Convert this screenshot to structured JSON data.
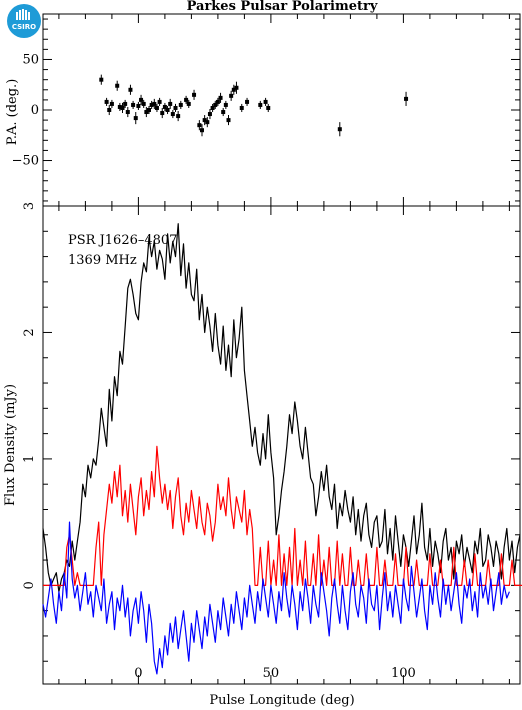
{
  "logo": {
    "text": "CSIRO",
    "color": "#1e9bd7"
  },
  "chart_data": [
    {
      "type": "scatter",
      "title": "Parkes Pulsar Polarimetry",
      "ylabel": "P.A. (deg.)",
      "xlim": [
        -36,
        144
      ],
      "ylim": [
        -95,
        95
      ],
      "yticks": [
        -50,
        0,
        50
      ],
      "points": [
        {
          "x": -14,
          "y": 30,
          "err": 5
        },
        {
          "x": -12,
          "y": 8,
          "err": 4
        },
        {
          "x": -11,
          "y": 0,
          "err": 5
        },
        {
          "x": -10,
          "y": 6,
          "err": 4
        },
        {
          "x": -8,
          "y": 24,
          "err": 5
        },
        {
          "x": -7,
          "y": 3,
          "err": 4
        },
        {
          "x": -6,
          "y": 2,
          "err": 5
        },
        {
          "x": -5,
          "y": 6,
          "err": 4
        },
        {
          "x": -4,
          "y": -2,
          "err": 5
        },
        {
          "x": -3,
          "y": 20,
          "err": 5
        },
        {
          "x": -2,
          "y": 5,
          "err": 4
        },
        {
          "x": -1,
          "y": -8,
          "err": 6
        },
        {
          "x": 0,
          "y": 4,
          "err": 4
        },
        {
          "x": 1,
          "y": 10,
          "err": 5
        },
        {
          "x": 2,
          "y": 6,
          "err": 4
        },
        {
          "x": 3,
          "y": -2,
          "err": 5
        },
        {
          "x": 4,
          "y": 0,
          "err": 4
        },
        {
          "x": 5,
          "y": 5,
          "err": 4
        },
        {
          "x": 6,
          "y": 6,
          "err": 5
        },
        {
          "x": 7,
          "y": 2,
          "err": 4
        },
        {
          "x": 8,
          "y": 8,
          "err": 4
        },
        {
          "x": 9,
          "y": -3,
          "err": 5
        },
        {
          "x": 10,
          "y": 3,
          "err": 4
        },
        {
          "x": 11,
          "y": 0,
          "err": 4
        },
        {
          "x": 12,
          "y": 6,
          "err": 5
        },
        {
          "x": 13,
          "y": -4,
          "err": 4
        },
        {
          "x": 14,
          "y": 2,
          "err": 4
        },
        {
          "x": 15,
          "y": -6,
          "err": 5
        },
        {
          "x": 16,
          "y": 5,
          "err": 4
        },
        {
          "x": 18,
          "y": 10,
          "err": 4
        },
        {
          "x": 19,
          "y": 6,
          "err": 4
        },
        {
          "x": 21,
          "y": 15,
          "err": 5
        },
        {
          "x": 23,
          "y": -15,
          "err": 5
        },
        {
          "x": 24,
          "y": -20,
          "err": 6
        },
        {
          "x": 25,
          "y": -10,
          "err": 5
        },
        {
          "x": 26,
          "y": -12,
          "err": 5
        },
        {
          "x": 27,
          "y": -4,
          "err": 5
        },
        {
          "x": 28,
          "y": 2,
          "err": 4
        },
        {
          "x": 29,
          "y": 5,
          "err": 4
        },
        {
          "x": 30,
          "y": 8,
          "err": 4
        },
        {
          "x": 31,
          "y": 12,
          "err": 5
        },
        {
          "x": 32,
          "y": -2,
          "err": 4
        },
        {
          "x": 33,
          "y": 5,
          "err": 4
        },
        {
          "x": 34,
          "y": -10,
          "err": 5
        },
        {
          "x": 35,
          "y": 14,
          "err": 5
        },
        {
          "x": 36,
          "y": 20,
          "err": 5
        },
        {
          "x": 37,
          "y": 22,
          "err": 6
        },
        {
          "x": 39,
          "y": 2,
          "err": 4
        },
        {
          "x": 41,
          "y": 8,
          "err": 4
        },
        {
          "x": 46,
          "y": 5,
          "err": 4
        },
        {
          "x": 48,
          "y": 8,
          "err": 4
        },
        {
          "x": 49,
          "y": 2,
          "err": 4
        },
        {
          "x": 76,
          "y": -19,
          "err": 7
        },
        {
          "x": 101,
          "y": 11,
          "err": 7
        }
      ]
    },
    {
      "type": "line",
      "ylabel": "Flux Density (mJy)",
      "xlabel": "Pulse Longitude (deg)",
      "xlim": [
        -36,
        144
      ],
      "ylim": [
        -0.78,
        3.0
      ],
      "xticks": [
        0,
        50,
        100
      ],
      "yticks": [
        0,
        1,
        2,
        3
      ],
      "annotations": [
        "PSR J1626–4807",
        "1369 MHz"
      ],
      "x_step": 1.0,
      "series": [
        {
          "color": "#000000",
          "values": [
            0.45,
            0.3,
            0.1,
            0.0,
            0.05,
            0.1,
            -0.05,
            0.05,
            0.1,
            0.2,
            0.15,
            0.35,
            0.2,
            0.35,
            0.5,
            0.8,
            0.7,
            0.95,
            0.85,
            1.0,
            0.95,
            1.15,
            1.4,
            1.25,
            1.1,
            1.55,
            1.3,
            1.65,
            1.5,
            1.85,
            1.75,
            2.05,
            2.35,
            2.42,
            2.3,
            2.15,
            2.1,
            2.4,
            2.55,
            2.48,
            2.75,
            2.6,
            2.72,
            2.5,
            2.65,
            2.58,
            2.42,
            2.78,
            2.55,
            2.72,
            2.6,
            2.86,
            2.45,
            2.7,
            2.35,
            2.55,
            2.3,
            2.25,
            2.5,
            2.1,
            2.3,
            2.0,
            2.2,
            2.05,
            1.85,
            2.15,
            1.9,
            1.75,
            2.05,
            1.7,
            1.9,
            1.65,
            2.1,
            1.8,
            1.95,
            2.2,
            1.7,
            1.5,
            1.3,
            1.1,
            1.25,
            1.05,
            0.95,
            1.2,
            1.0,
            1.35,
            1.05,
            0.85,
            0.4,
            0.55,
            0.75,
            0.9,
            1.1,
            1.35,
            1.2,
            1.45,
            1.3,
            1.1,
            1.0,
            1.25,
            1.05,
            0.85,
            0.8,
            0.55,
            0.7,
            0.9,
            0.75,
            0.95,
            0.7,
            0.6,
            0.8,
            0.45,
            0.65,
            0.55,
            0.75,
            0.6,
            0.5,
            0.7,
            0.4,
            0.6,
            0.35,
            0.55,
            0.65,
            0.4,
            0.3,
            0.5,
            0.55,
            0.3,
            0.35,
            0.6,
            0.25,
            0.45,
            0.2,
            0.55,
            0.35,
            0.15,
            0.4,
            0.3,
            0.15,
            0.35,
            0.55,
            0.25,
            0.4,
            0.65,
            0.3,
            0.2,
            0.45,
            0.15,
            0.35,
            0.25,
            0.1,
            0.35,
            0.45,
            0.2,
            0.3,
            0.05,
            0.35,
            0.25,
            0.4,
            0.15,
            0.3,
            0.2,
            0.1,
            0.35,
            0.25,
            0.45,
            0.15,
            0.2,
            0.4,
            0.3,
            0.15,
            0.35,
            0.25,
            0.05,
            0.3,
            0.45,
            0.2,
            0.35,
            0.1,
            0.3,
            0.4
          ]
        },
        {
          "color": "#ff0000",
          "values": [
            0.0,
            0.0,
            0.0,
            0.0,
            0.0,
            0.0,
            0.0,
            0.0,
            0.0,
            0.3,
            0.4,
            0.2,
            0.0,
            0.1,
            0.0,
            0.0,
            0.0,
            0.0,
            0.0,
            0.0,
            0.3,
            0.5,
            0.0,
            0.4,
            0.6,
            0.8,
            0.65,
            0.9,
            0.7,
            0.95,
            0.55,
            0.75,
            0.5,
            0.8,
            0.6,
            0.4,
            0.7,
            0.85,
            0.55,
            0.75,
            0.6,
            0.9,
            0.7,
            1.1,
            0.85,
            0.65,
            0.8,
            0.6,
            0.75,
            0.45,
            0.7,
            0.85,
            0.55,
            0.4,
            0.65,
            0.5,
            0.75,
            0.6,
            0.45,
            0.7,
            0.5,
            0.4,
            0.65,
            0.55,
            0.35,
            0.5,
            0.8,
            0.6,
            0.7,
            0.55,
            0.85,
            0.6,
            0.45,
            0.7,
            0.6,
            0.5,
            0.75,
            0.4,
            0.6,
            0.45,
            0.0,
            0.0,
            0.3,
            0.0,
            0.0,
            0.35,
            0.0,
            0.2,
            0.0,
            0.4,
            0.0,
            0.25,
            0.0,
            0.3,
            0.0,
            0.45,
            0.0,
            0.2,
            0.0,
            0.35,
            0.0,
            0.0,
            0.25,
            0.0,
            0.4,
            0.0,
            0.2,
            0.0,
            0.3,
            0.0,
            0.0,
            0.35,
            0.0,
            0.25,
            0.0,
            0.0,
            0.3,
            0.0,
            0.0,
            0.2,
            0.0,
            0.0,
            0.25,
            0.0,
            0.0,
            0.0,
            0.3,
            0.0,
            0.0,
            0.2,
            0.0,
            0.0,
            0.0,
            0.25,
            0.0,
            0.0,
            0.0,
            0.3,
            0.0,
            0.0,
            0.0,
            0.2,
            0.0,
            0.0,
            0.0,
            0.0,
            0.25,
            0.0,
            0.0,
            0.0,
            0.2,
            0.0,
            0.0,
            0.0,
            0.0,
            0.3,
            0.0,
            0.0,
            0.0,
            0.2,
            0.0,
            0.0,
            0.0,
            0.25,
            0.0,
            0.0,
            0.0,
            0.0,
            0.2,
            0.0,
            0.0,
            0.0,
            0.0,
            0.25,
            0.0,
            0.0,
            0.0,
            0.2,
            0.0,
            0.0,
            0.0,
            0.0
          ]
        },
        {
          "color": "#0000ff",
          "values": [
            -0.15,
            -0.25,
            -0.1,
            0.05,
            -0.15,
            -0.3,
            -0.05,
            -0.2,
            0.1,
            -0.1,
            0.5,
            0.05,
            -0.1,
            0.0,
            -0.2,
            -0.05,
            0.1,
            -0.15,
            -0.05,
            -0.25,
            0.0,
            -0.1,
            -0.2,
            0.05,
            -0.3,
            -0.15,
            -0.05,
            -0.35,
            -0.1,
            -0.2,
            0.0,
            -0.25,
            -0.1,
            -0.4,
            -0.2,
            -0.1,
            -0.3,
            -0.05,
            -0.2,
            -0.45,
            -0.15,
            -0.3,
            -0.6,
            -0.7,
            -0.5,
            -0.65,
            -0.4,
            -0.55,
            -0.3,
            -0.45,
            -0.25,
            -0.5,
            -0.35,
            -0.2,
            -0.4,
            -0.6,
            -0.3,
            -0.45,
            -0.2,
            -0.35,
            -0.5,
            -0.25,
            -0.4,
            -0.15,
            -0.3,
            -0.45,
            -0.2,
            -0.35,
            -0.1,
            -0.25,
            -0.4,
            -0.15,
            -0.3,
            -0.05,
            -0.2,
            -0.35,
            -0.1,
            -0.25,
            0.0,
            -0.15,
            -0.3,
            -0.05,
            -0.2,
            0.05,
            -0.1,
            -0.25,
            0.0,
            -0.15,
            -0.3,
            -0.05,
            -0.2,
            0.1,
            -0.1,
            -0.25,
            0.0,
            -0.15,
            -0.35,
            -0.05,
            -0.2,
            0.05,
            -0.1,
            -0.3,
            0.0,
            -0.15,
            -0.25,
            0.1,
            -0.05,
            -0.2,
            -0.4,
            -0.1,
            0.05,
            -0.15,
            -0.3,
            0.0,
            -0.2,
            -0.35,
            -0.05,
            0.1,
            -0.15,
            -0.25,
            0.0,
            -0.1,
            -0.3,
            0.05,
            -0.15,
            -0.2,
            0.0,
            -0.35,
            -0.1,
            0.1,
            -0.2,
            -0.05,
            -0.25,
            0.0,
            -0.15,
            -0.3,
            0.05,
            -0.1,
            -0.2,
            0.15,
            -0.05,
            -0.25,
            -0.1,
            0.05,
            -0.2,
            -0.35,
            0.0,
            -0.15,
            0.1,
            -0.1,
            -0.25,
            0.05,
            -0.15,
            0.0,
            -0.2,
            -0.05,
            0.1,
            -0.15,
            -0.3,
            0.0,
            -0.1,
            0.05,
            -0.2,
            -0.05,
            -0.25,
            0.1,
            -0.1,
            0.0,
            -0.15,
            0.05,
            -0.2,
            -0.05,
            0.1,
            -0.15,
            0.0,
            -0.1,
            -0.05
          ]
        }
      ]
    }
  ]
}
